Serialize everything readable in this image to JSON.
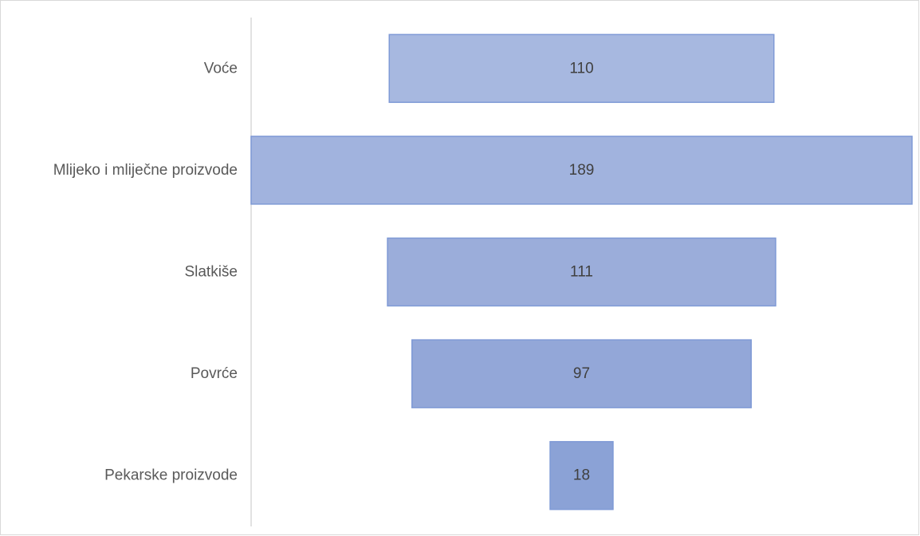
{
  "chart_data": {
    "type": "bar",
    "orientation": "horizontal",
    "style": "funnel",
    "categories": [
      "Voće",
      "Mlijeko i mliječne proizvode",
      "Slatkiše",
      "Povrće",
      "Pekarske proizvode"
    ],
    "values": [
      110,
      189,
      111,
      97,
      18
    ],
    "title": "",
    "xlabel": "",
    "ylabel": "",
    "grid": false,
    "legend": "none",
    "colors": [
      "#a7b8e0",
      "#a1b3de",
      "#9badda",
      "#93a7d8",
      "#8ba2d6"
    ],
    "border_color": "#7f9ad6"
  }
}
